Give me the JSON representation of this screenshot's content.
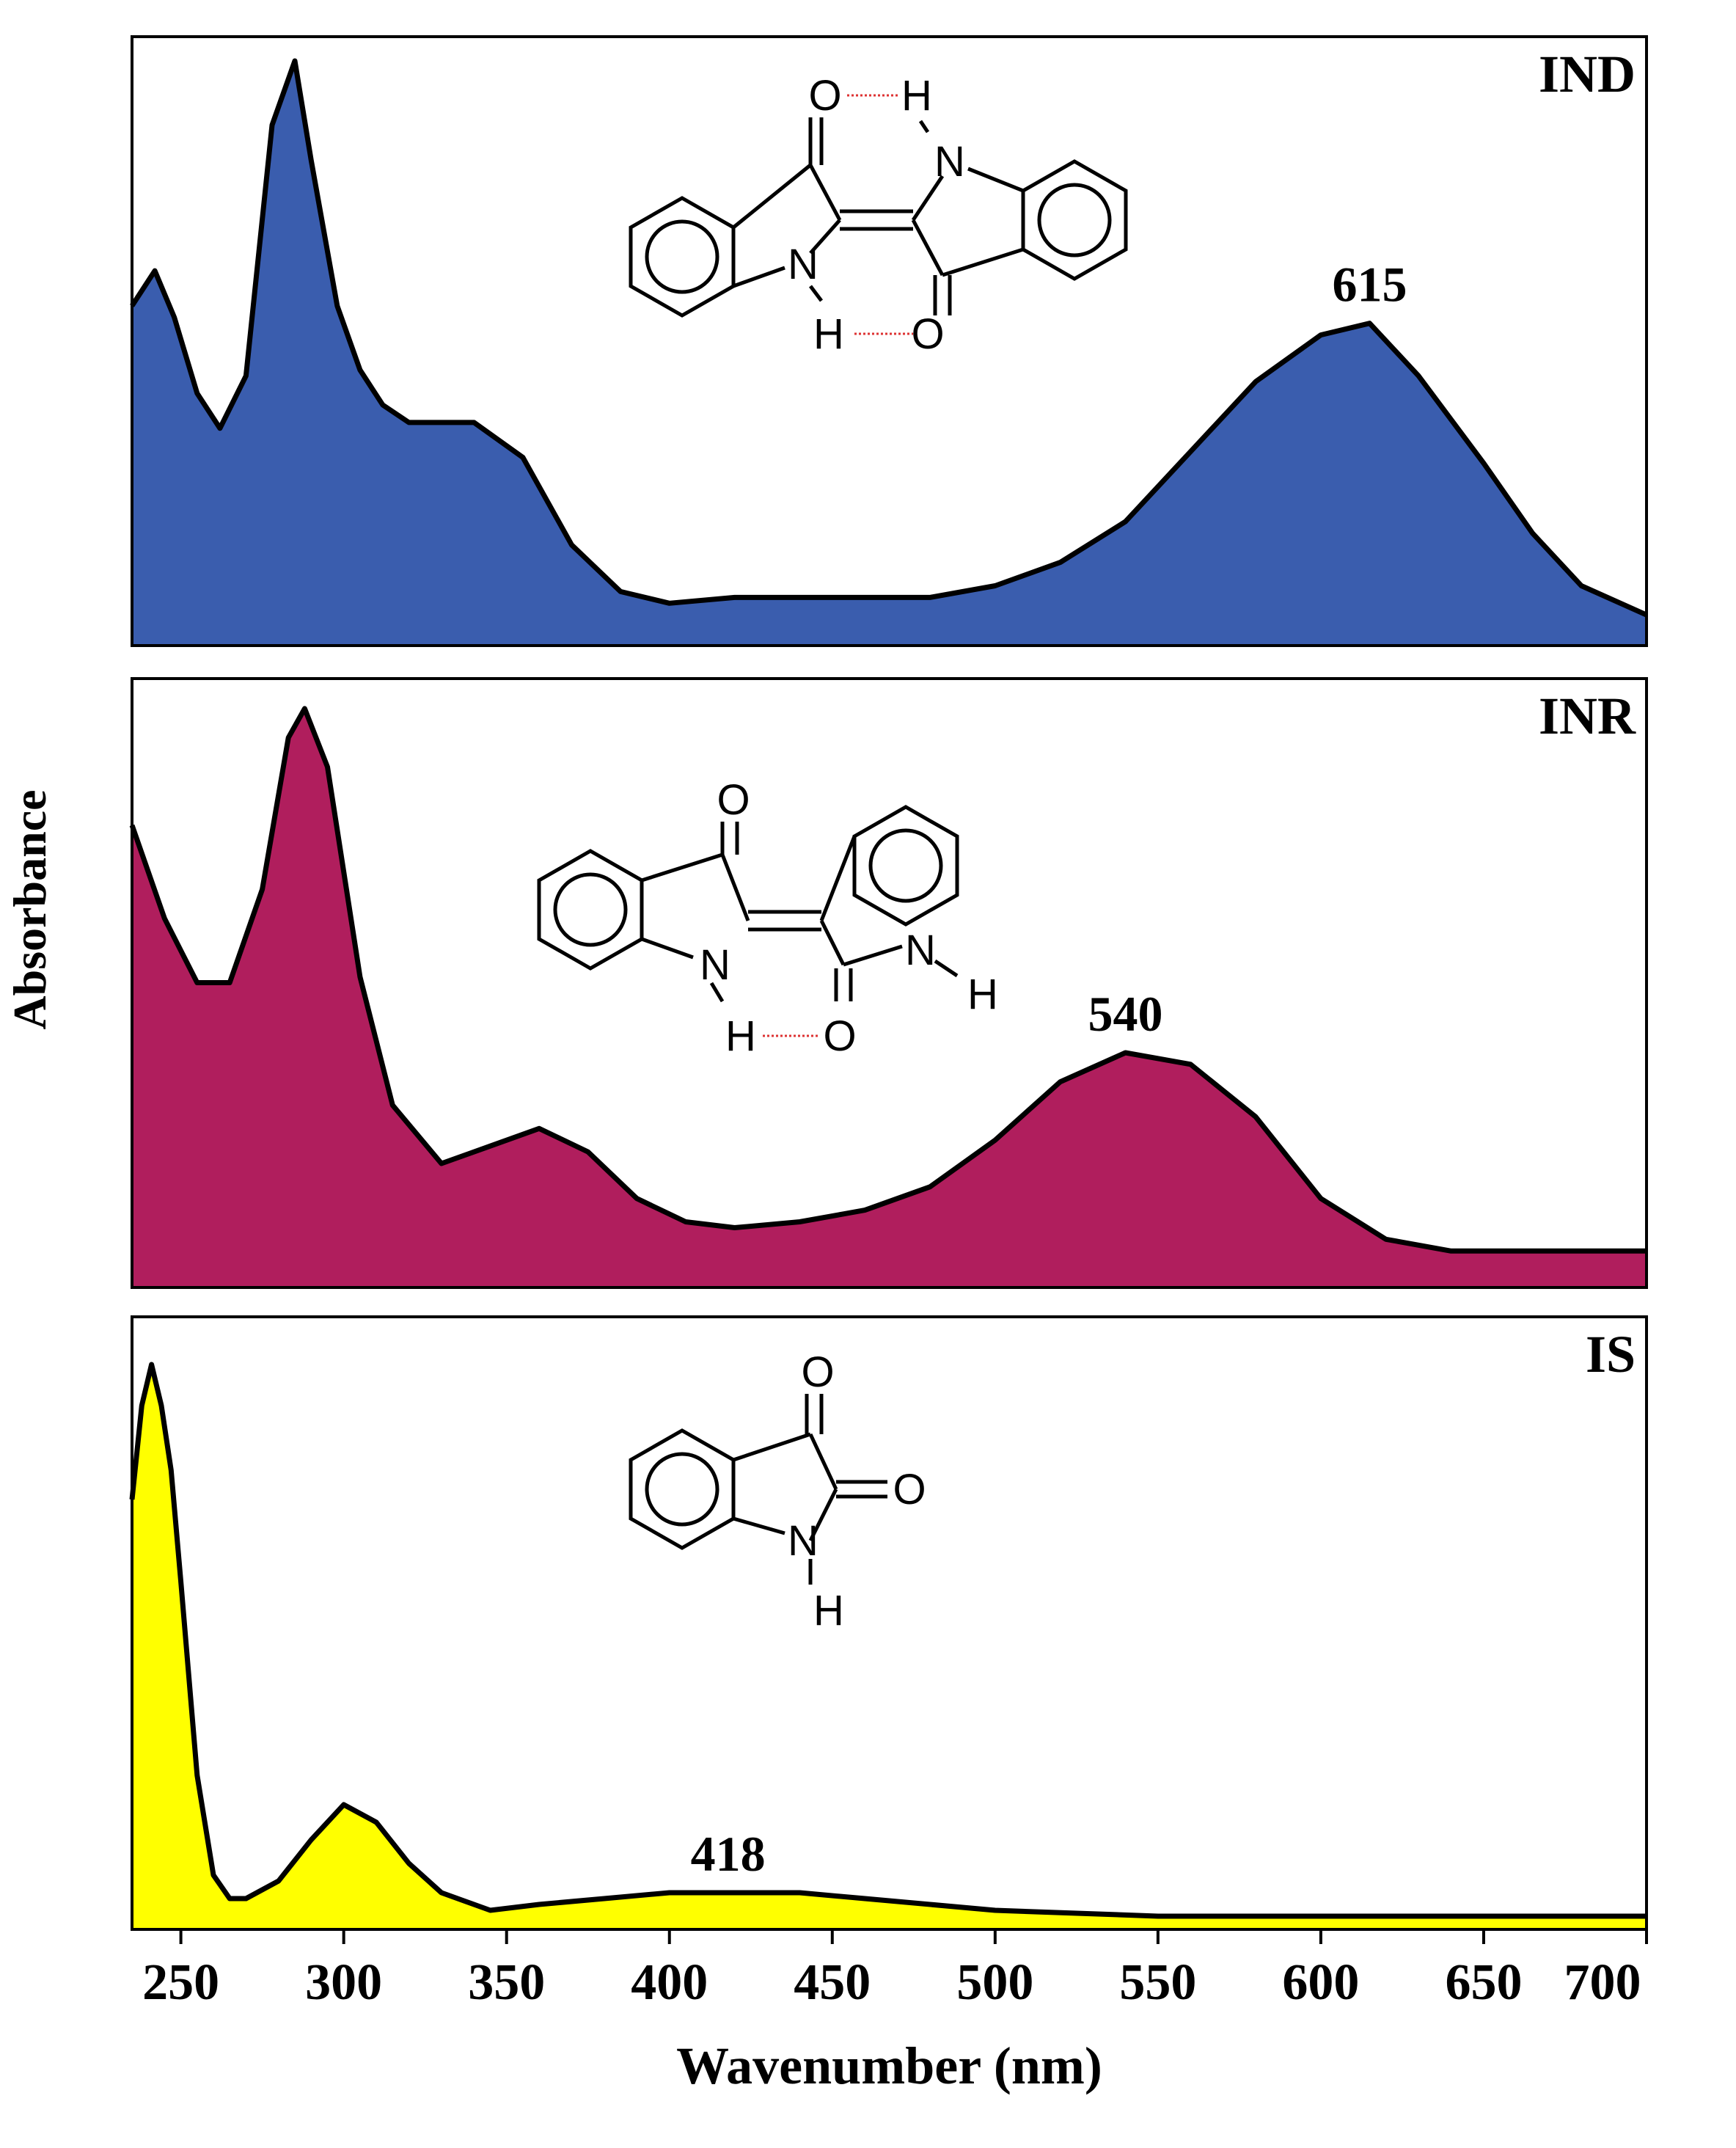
{
  "chart_data": {
    "type": "area",
    "xlabel": "Wavenumber (nm)",
    "ylabel": "Absorbance",
    "xlim": [
      235,
      700
    ],
    "x_ticks": [
      250,
      300,
      350,
      400,
      450,
      500,
      550,
      600,
      650,
      700
    ],
    "panels": [
      {
        "name": "IND",
        "color": "#3A5DAE",
        "ylim": [
          0,
          1
        ],
        "peak_label": "615",
        "peak_x": 615,
        "x": [
          235,
          242,
          248,
          255,
          262,
          270,
          278,
          285,
          290,
          298,
          305,
          312,
          320,
          330,
          340,
          355,
          370,
          385,
          400,
          420,
          450,
          480,
          500,
          520,
          540,
          560,
          580,
          600,
          615,
          630,
          650,
          665,
          680,
          700
        ],
        "y": [
          0.57,
          0.63,
          0.55,
          0.42,
          0.36,
          0.45,
          0.88,
          0.99,
          0.82,
          0.57,
          0.46,
          0.4,
          0.37,
          0.37,
          0.37,
          0.31,
          0.16,
          0.08,
          0.06,
          0.07,
          0.07,
          0.07,
          0.09,
          0.13,
          0.2,
          0.32,
          0.44,
          0.52,
          0.54,
          0.45,
          0.3,
          0.18,
          0.09,
          0.04
        ]
      },
      {
        "name": "INR",
        "color": "#B01E5D",
        "ylim": [
          0,
          1
        ],
        "peak_label": "540",
        "peak_x": 540,
        "x": [
          235,
          245,
          255,
          265,
          275,
          283,
          288,
          295,
          305,
          315,
          330,
          345,
          360,
          375,
          390,
          405,
          420,
          440,
          460,
          480,
          500,
          520,
          540,
          560,
          580,
          600,
          620,
          640,
          660,
          680,
          700
        ],
        "y": [
          0.78,
          0.62,
          0.51,
          0.51,
          0.67,
          0.93,
          0.98,
          0.88,
          0.52,
          0.3,
          0.2,
          0.23,
          0.26,
          0.22,
          0.14,
          0.1,
          0.09,
          0.1,
          0.12,
          0.16,
          0.24,
          0.34,
          0.39,
          0.37,
          0.28,
          0.14,
          0.07,
          0.05,
          0.05,
          0.05,
          0.05
        ]
      },
      {
        "name": "IS",
        "color": "#FFFF00",
        "ylim": [
          0,
          1
        ],
        "peak_label": "418",
        "peak_x": 418,
        "x": [
          235,
          238,
          241,
          244,
          247,
          250,
          255,
          260,
          265,
          270,
          280,
          290,
          300,
          310,
          320,
          330,
          345,
          360,
          380,
          400,
          418,
          440,
          460,
          500,
          550,
          600,
          650,
          700
        ],
        "y": [
          0.72,
          0.88,
          0.95,
          0.88,
          0.77,
          0.58,
          0.25,
          0.08,
          0.04,
          0.04,
          0.07,
          0.14,
          0.2,
          0.17,
          0.1,
          0.05,
          0.02,
          0.03,
          0.04,
          0.05,
          0.05,
          0.05,
          0.04,
          0.02,
          0.01,
          0.01,
          0.01,
          0.01
        ]
      }
    ]
  },
  "structures": {
    "IND": {
      "atoms": [
        "O",
        "H",
        "N",
        "N",
        "H",
        "O"
      ]
    },
    "INR": {
      "atoms": [
        "O",
        "N",
        "H",
        "O",
        "N",
        "H"
      ]
    },
    "IS": {
      "atoms": [
        "O",
        "O",
        "N",
        "H"
      ]
    }
  }
}
